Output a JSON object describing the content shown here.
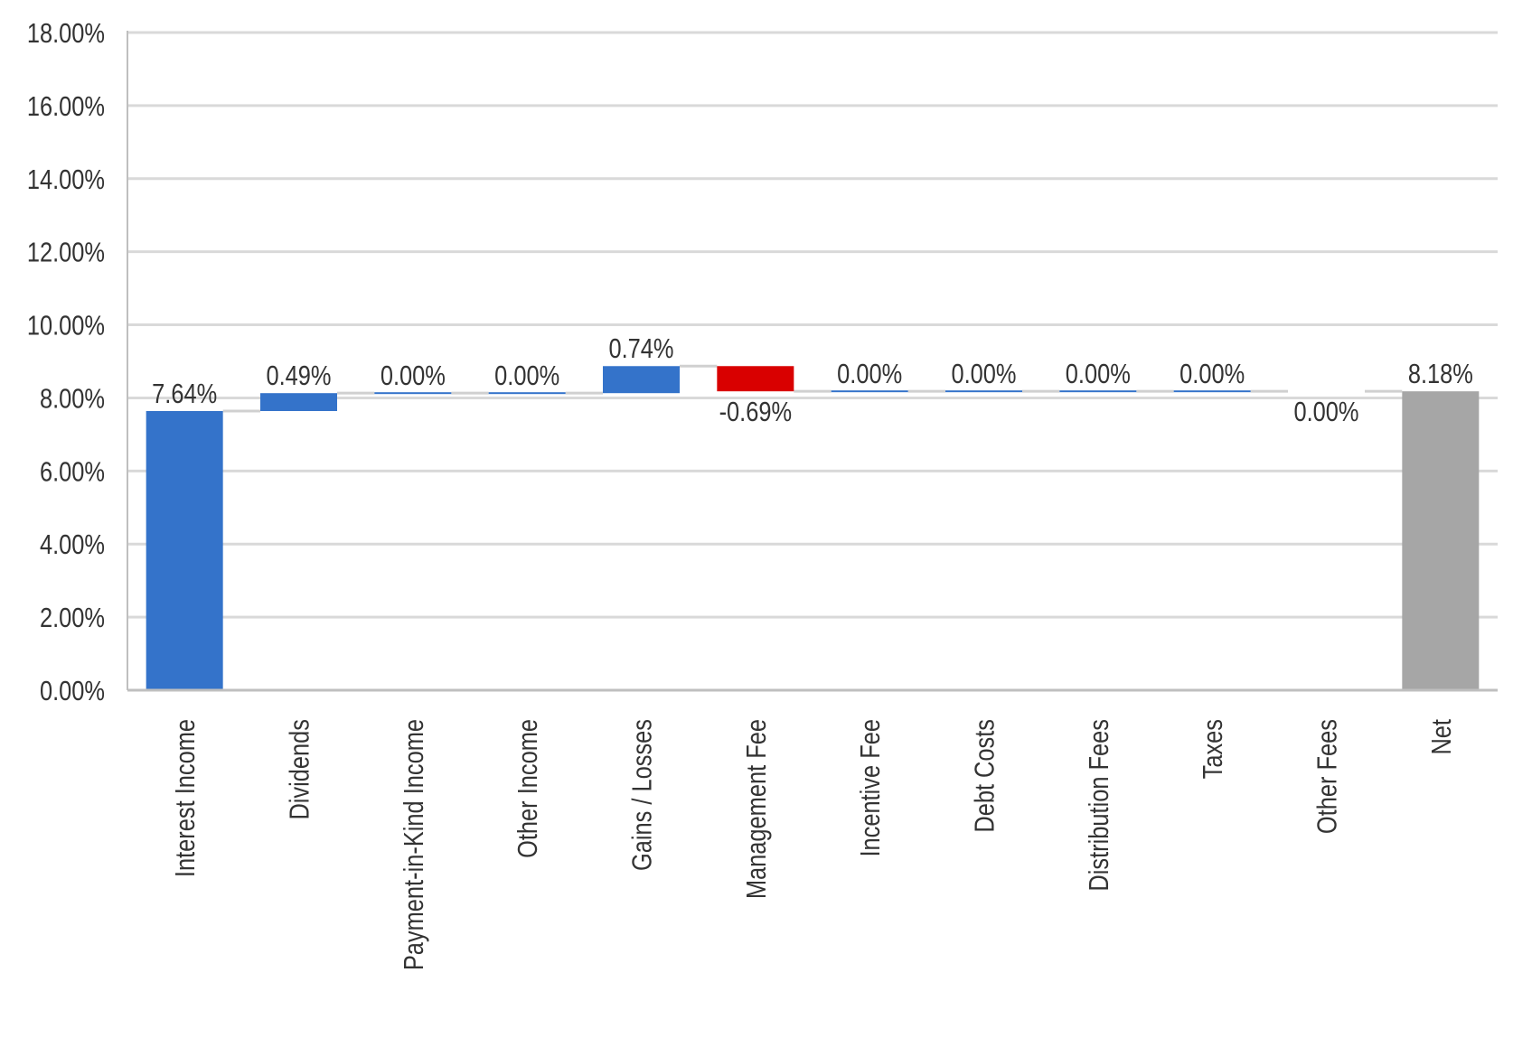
{
  "chart_data": {
    "type": "bar",
    "subtype": "waterfall",
    "title": "",
    "xlabel": "",
    "ylabel": "",
    "ylim": [
      0,
      18
    ],
    "y_ticks": [
      "0.00%",
      "2.00%",
      "4.00%",
      "6.00%",
      "8.00%",
      "10.00%",
      "12.00%",
      "14.00%",
      "16.00%",
      "18.00%"
    ],
    "grid": true,
    "legend": "none",
    "categories": [
      "Interest Income",
      "Dividends",
      "Payment-in-Kind Income",
      "Other Income",
      "Gains / Losses",
      "Management Fee",
      "Incentive Fee",
      "Debt Costs",
      "Distribution Fees",
      "Taxes",
      "Other Fees",
      "Net"
    ],
    "values": [
      7.64,
      0.49,
      0.0,
      0.0,
      0.74,
      -0.69,
      0.0,
      0.0,
      0.0,
      0.0,
      0.0,
      8.18
    ],
    "data_labels": [
      "7.64%",
      "0.49%",
      "0.00%",
      "0.00%",
      "0.74%",
      "-0.69%",
      "0.00%",
      "0.00%",
      "0.00%",
      "0.00%",
      "0.00%",
      "8.18%"
    ],
    "total_index": 11,
    "colors": {
      "increase": "#3473CA",
      "decrease": "#D90000",
      "total": "#A6A6A6",
      "grid": "#D9D9D9",
      "axis": "#BFBFBF",
      "text": "#333333"
    }
  }
}
